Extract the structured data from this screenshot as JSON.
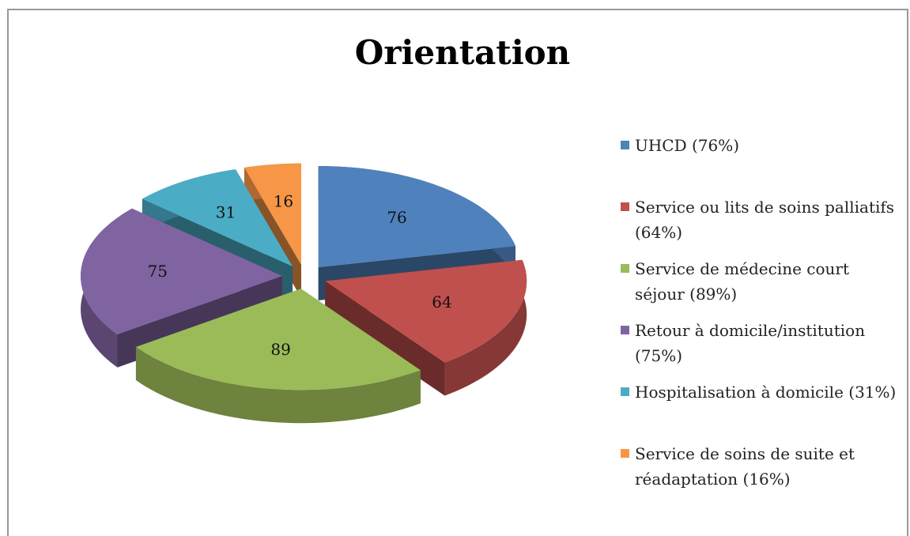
{
  "chart_data": {
    "type": "pie3d",
    "title": "Orientation",
    "categories": [
      "UHCD (76%)",
      "Service ou lits de soins palliatifs (64%)",
      "Service de médecine court séjour (89%)",
      "Retour à domicile/institution (75%)",
      "Hospitalisation à domicile (31%)",
      "Service de soins de suite et réadaptation (16%)"
    ],
    "values": [
      76,
      64,
      89,
      75,
      31,
      16
    ],
    "colors": [
      "#4f81bd",
      "#c0504d",
      "#9bbb59",
      "#8064a2",
      "#4bacc6",
      "#f79646"
    ],
    "legend": "right"
  }
}
